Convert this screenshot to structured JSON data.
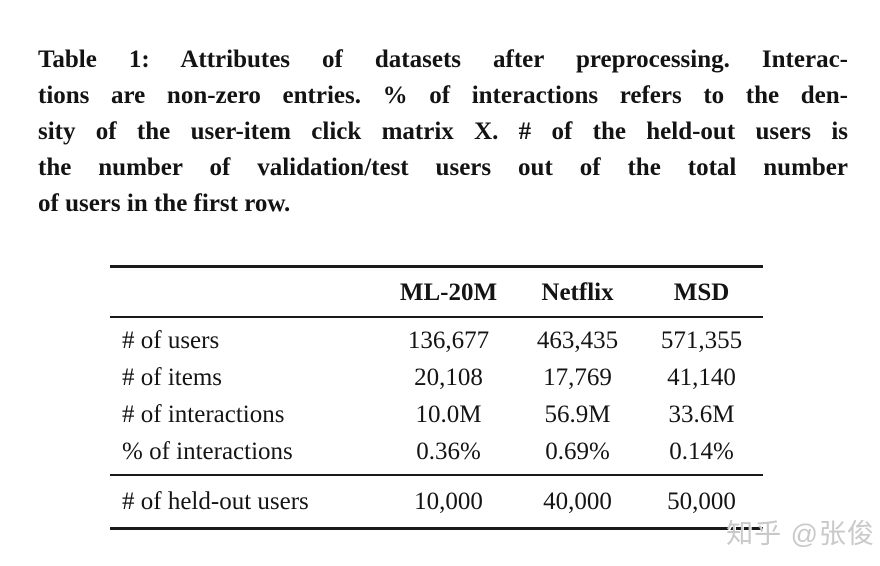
{
  "caption": {
    "lines": [
      "Table 1: Attributes of datasets after preprocessing. Interac-",
      "tions are non-zero entries. % of interactions refers to the den-",
      "sity of the user-item click matrix X. # of the held-out users is",
      "the number of validation/test users out of the total number",
      "of users in the first row."
    ]
  },
  "table": {
    "columns": [
      "",
      "ML-20M",
      "Netflix",
      "MSD"
    ],
    "rows": [
      {
        "label": "# of users",
        "values": [
          "136,677",
          "463,435",
          "571,355"
        ]
      },
      {
        "label": "# of items",
        "values": [
          "20,108",
          "17,769",
          "41,140"
        ]
      },
      {
        "label": "# of interactions",
        "values": [
          "10.0M",
          "56.9M",
          "33.6M"
        ]
      },
      {
        "label": "% of interactions",
        "values": [
          "0.36%",
          "0.69%",
          "0.14%"
        ]
      }
    ],
    "footer_row": {
      "label": "# of held-out users",
      "values": [
        "10,000",
        "40,000",
        "50,000"
      ]
    }
  },
  "watermark": {
    "text": "知乎 @张俊"
  },
  "colors": {
    "background": "#ffffff",
    "text": "#141414",
    "rule": "#1a1a1a",
    "watermark": "#c9c9c9"
  }
}
